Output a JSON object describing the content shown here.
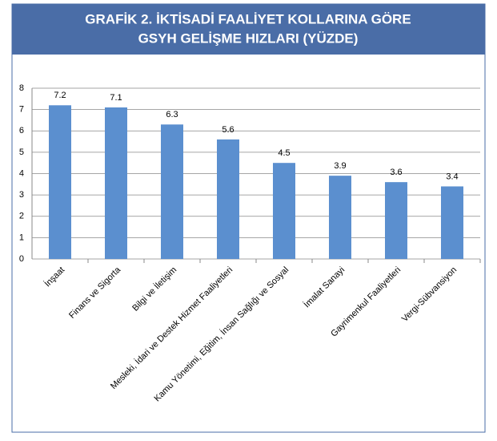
{
  "chart_data": {
    "type": "bar",
    "title": [
      "GRAFİK 2. İKTİSADİ FAALİYET KOLLARINA GÖRE",
      "GSYH GELİŞME HIZLARI (YÜZDE)"
    ],
    "categories": [
      "İnşaat",
      "Finans ve Sigorta",
      "Bilgi ve İletişim",
      "Mesleki, İdari ve Destek Hizmet Faaliyetleri",
      "Kamu Yönetimi, Eğitim, İnsan Sağlığı ve Sosyal",
      "İmalat Sanayi",
      "Gayrimenkul Faaliyetleri",
      "Vergi-Sübvansiyon"
    ],
    "values": [
      7.2,
      7.1,
      6.3,
      5.6,
      4.5,
      3.9,
      3.6,
      3.4
    ],
    "color": "#5b8fcf",
    "ylim": [
      0,
      8
    ],
    "yticks": [
      0,
      1,
      2,
      3,
      4,
      5,
      6,
      7,
      8
    ],
    "grid": true
  }
}
